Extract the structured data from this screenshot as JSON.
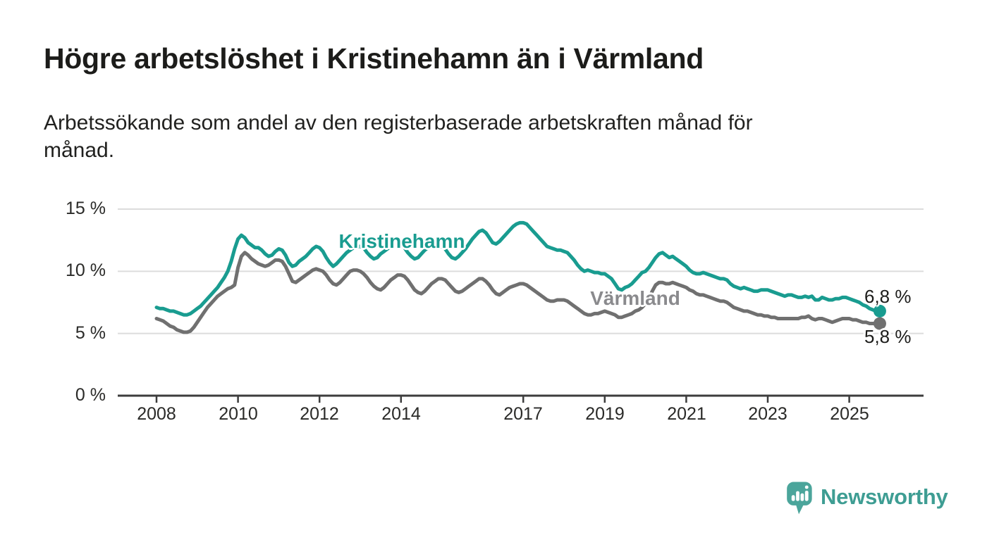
{
  "title": "Högre arbetslöshet i Kristinehamn än i Värmland",
  "subtitle_line1": "Arbetssökande som andel av den registerbaserade arbetskraften månad för",
  "subtitle_line2": "månad.",
  "branding": {
    "name": "Newsworthy",
    "text_color": "#3E9D93",
    "icon_color": "#4BA59B"
  },
  "chart_data": {
    "type": "line",
    "frequency": "monthly",
    "start": "2008-01",
    "end": "2025-10",
    "unit": "percent of registered labour force",
    "grid": "horizontal",
    "ylim": [
      0,
      15
    ],
    "y_ticks": [
      15,
      10,
      5,
      0
    ],
    "y_tick_labels": [
      "15 %",
      "10 %",
      "5 %",
      "0 %"
    ],
    "x_tick_years": [
      2008,
      2010,
      2012,
      2014,
      2017,
      2019,
      2021,
      2023,
      2025
    ],
    "x_tick_labels": [
      "2008",
      "2010",
      "2012",
      "2014",
      "2017",
      "2019",
      "2021",
      "2023",
      "2025"
    ],
    "series": [
      {
        "name": "Kristinehamn",
        "color": "#199C90",
        "end_label": "6,8 %",
        "end_value": 6.8,
        "values": [
          7.1,
          7.0,
          7.0,
          6.9,
          6.8,
          6.8,
          6.7,
          6.6,
          6.5,
          6.5,
          6.6,
          6.8,
          7.0,
          7.2,
          7.5,
          7.8,
          8.1,
          8.4,
          8.7,
          9.1,
          9.5,
          10.0,
          10.8,
          11.8,
          12.6,
          12.9,
          12.7,
          12.3,
          12.1,
          11.9,
          11.9,
          11.7,
          11.4,
          11.2,
          11.3,
          11.6,
          11.8,
          11.7,
          11.3,
          10.7,
          10.4,
          10.5,
          10.8,
          11.0,
          11.2,
          11.5,
          11.8,
          12.0,
          11.9,
          11.6,
          11.1,
          10.7,
          10.4,
          10.6,
          10.9,
          11.2,
          11.5,
          11.7,
          11.9,
          12.0,
          12.0,
          11.9,
          11.5,
          11.2,
          11.0,
          11.1,
          11.4,
          11.6,
          11.8,
          12.0,
          12.1,
          12.2,
          12.1,
          11.9,
          11.5,
          11.2,
          11.0,
          11.1,
          11.4,
          11.7,
          11.9,
          12.0,
          12.1,
          12.2,
          12.0,
          11.8,
          11.4,
          11.1,
          11.0,
          11.2,
          11.5,
          11.8,
          12.2,
          12.6,
          12.9,
          13.2,
          13.3,
          13.1,
          12.7,
          12.3,
          12.2,
          12.4,
          12.7,
          13.0,
          13.3,
          13.6,
          13.8,
          13.9,
          13.9,
          13.8,
          13.5,
          13.2,
          12.9,
          12.6,
          12.3,
          12.0,
          11.9,
          11.8,
          11.7,
          11.7,
          11.6,
          11.5,
          11.2,
          10.9,
          10.5,
          10.2,
          10.0,
          10.1,
          10.0,
          9.9,
          9.9,
          9.8,
          9.8,
          9.6,
          9.4,
          9.0,
          8.6,
          8.5,
          8.7,
          8.8,
          9.0,
          9.3,
          9.6,
          9.9,
          10.0,
          10.3,
          10.7,
          11.1,
          11.4,
          11.5,
          11.3,
          11.1,
          11.2,
          11.0,
          10.8,
          10.6,
          10.4,
          10.1,
          9.9,
          9.8,
          9.8,
          9.9,
          9.8,
          9.7,
          9.6,
          9.5,
          9.4,
          9.4,
          9.3,
          9.0,
          8.8,
          8.7,
          8.6,
          8.7,
          8.6,
          8.5,
          8.4,
          8.4,
          8.5,
          8.5,
          8.5,
          8.4,
          8.3,
          8.2,
          8.1,
          8.0,
          8.1,
          8.1,
          8.0,
          7.9,
          7.9,
          8.0,
          7.9,
          8.0,
          7.7,
          7.7,
          7.9,
          7.8,
          7.7,
          7.7,
          7.8,
          7.8,
          7.9,
          7.9,
          7.8,
          7.7,
          7.6,
          7.5,
          7.3,
          7.2,
          7.0,
          6.9,
          6.8,
          6.8
        ]
      },
      {
        "name": "Värmland",
        "color": "#707070",
        "label_color": "#8A8A8D",
        "end_label": "5,8 %",
        "end_value": 5.8,
        "values": [
          6.2,
          6.1,
          6.0,
          5.8,
          5.6,
          5.5,
          5.3,
          5.2,
          5.1,
          5.1,
          5.2,
          5.5,
          5.9,
          6.3,
          6.7,
          7.1,
          7.4,
          7.7,
          8.0,
          8.2,
          8.4,
          8.6,
          8.7,
          8.9,
          10.3,
          11.2,
          11.5,
          11.3,
          11.0,
          10.8,
          10.6,
          10.5,
          10.4,
          10.5,
          10.7,
          10.9,
          10.9,
          10.8,
          10.4,
          9.8,
          9.2,
          9.1,
          9.3,
          9.5,
          9.7,
          9.9,
          10.1,
          10.2,
          10.1,
          10.0,
          9.7,
          9.3,
          9.0,
          8.9,
          9.1,
          9.4,
          9.7,
          10.0,
          10.1,
          10.1,
          10.0,
          9.8,
          9.5,
          9.1,
          8.8,
          8.6,
          8.5,
          8.7,
          9.0,
          9.3,
          9.5,
          9.7,
          9.7,
          9.6,
          9.3,
          8.9,
          8.5,
          8.3,
          8.2,
          8.4,
          8.7,
          9.0,
          9.2,
          9.4,
          9.4,
          9.3,
          9.0,
          8.7,
          8.4,
          8.3,
          8.4,
          8.6,
          8.8,
          9.0,
          9.2,
          9.4,
          9.4,
          9.2,
          8.9,
          8.5,
          8.2,
          8.1,
          8.3,
          8.5,
          8.7,
          8.8,
          8.9,
          9.0,
          9.0,
          8.9,
          8.7,
          8.5,
          8.3,
          8.1,
          7.9,
          7.7,
          7.6,
          7.6,
          7.7,
          7.7,
          7.7,
          7.6,
          7.4,
          7.2,
          7.0,
          6.8,
          6.6,
          6.5,
          6.5,
          6.6,
          6.6,
          6.7,
          6.8,
          6.7,
          6.6,
          6.5,
          6.3,
          6.3,
          6.4,
          6.5,
          6.6,
          6.8,
          6.9,
          7.1,
          7.4,
          7.8,
          8.4,
          8.9,
          9.1,
          9.1,
          9.0,
          9.0,
          9.1,
          9.0,
          8.9,
          8.8,
          8.7,
          8.5,
          8.4,
          8.2,
          8.1,
          8.1,
          8.0,
          7.9,
          7.8,
          7.7,
          7.6,
          7.6,
          7.5,
          7.3,
          7.1,
          7.0,
          6.9,
          6.8,
          6.8,
          6.7,
          6.6,
          6.5,
          6.5,
          6.4,
          6.4,
          6.3,
          6.3,
          6.2,
          6.2,
          6.2,
          6.2,
          6.2,
          6.2,
          6.2,
          6.3,
          6.3,
          6.4,
          6.2,
          6.1,
          6.2,
          6.2,
          6.1,
          6.0,
          5.9,
          6.0,
          6.1,
          6.2,
          6.2,
          6.2,
          6.1,
          6.1,
          6.0,
          5.9,
          5.9,
          5.8,
          5.8,
          5.8,
          5.8
        ]
      }
    ]
  }
}
